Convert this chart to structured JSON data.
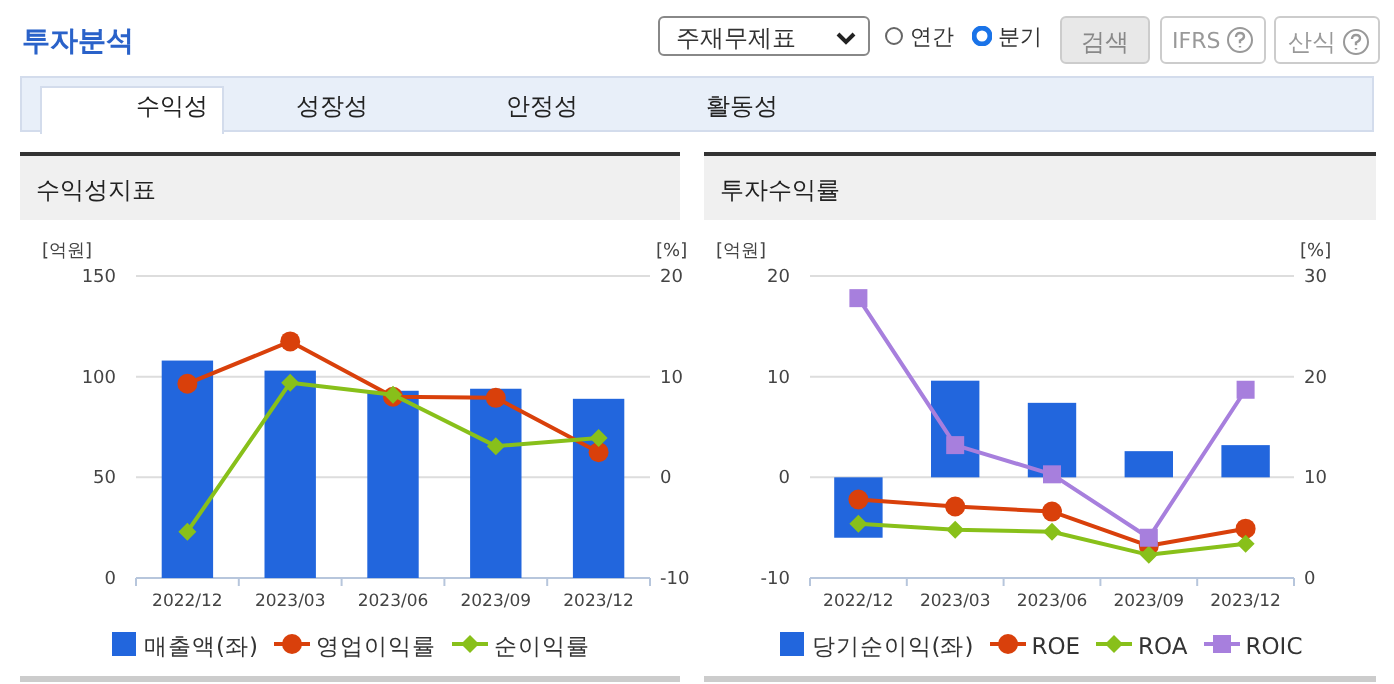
{
  "chart_data": [
    {
      "type": "bar",
      "title": "수익성지표",
      "ylabel": "[억원]",
      "y2label": "[%]",
      "annotations": [
        "투자분석",
        "주재무제표",
        "연간",
        "분기",
        "검색",
        "IFRS",
        "산식",
        "수익성",
        "성장성",
        "안정성",
        "활동성"
      ],
      "categories": [
        "2022/12",
        "2023/03",
        "2023/06",
        "2023/09",
        "2023/12"
      ],
      "series": [
        {
          "name": "매출액(좌)",
          "color": "#2266dd",
          "values": [
            108,
            103,
            93,
            94,
            89
          ]
        },
        {
          "name": "영업이익률",
          "type": "line",
          "axis": "y2",
          "marker": "circle",
          "color": "#d9400b",
          "values": [
            9.3,
            13.5,
            8.0,
            7.9,
            2.5
          ]
        },
        {
          "name": "순이익률",
          "type": "line",
          "axis": "y2",
          "marker": "diamond",
          "color": "#88c01a",
          "values": [
            -5.4,
            9.4,
            8.2,
            3.1,
            3.9
          ]
        }
      ],
      "ylim": [
        0,
        150
      ],
      "yticks": [
        0,
        50,
        100,
        150
      ],
      "y2lim": [
        -10,
        20
      ],
      "y2ticks": [
        -10,
        0,
        10,
        20
      ],
      "grid": "y",
      "legend": "bottom"
    },
    {
      "type": "bar",
      "title": "투자수익률",
      "ylabel": "[억원]",
      "y2label": "[%]",
      "categories": [
        "2022/12",
        "2023/03",
        "2023/06",
        "2023/09",
        "2023/12"
      ],
      "series": [
        {
          "name": "당기순이익(좌)",
          "color": "#2266dd",
          "values": [
            -6.0,
            9.6,
            7.4,
            2.6,
            3.2
          ]
        },
        {
          "name": "ROE",
          "type": "line",
          "axis": "y2",
          "marker": "circle",
          "color": "#d9400b",
          "values": [
            7.8,
            7.1,
            6.6,
            3.2,
            4.9
          ]
        },
        {
          "name": "ROA",
          "type": "line",
          "axis": "y2",
          "marker": "diamond",
          "color": "#88c01a",
          "values": [
            5.4,
            4.8,
            4.6,
            2.3,
            3.4
          ]
        },
        {
          "name": "ROIC",
          "type": "line",
          "axis": "y2",
          "marker": "square",
          "color": "#a77fdd",
          "values": [
            27.8,
            13.2,
            10.3,
            4.0,
            18.7
          ]
        }
      ],
      "ylim": [
        -10,
        20
      ],
      "yticks": [
        -10,
        0,
        10,
        20
      ],
      "y2lim": [
        0,
        30
      ],
      "y2ticks": [
        0,
        10,
        20,
        30
      ],
      "grid": "y",
      "legend": "bottom"
    }
  ]
}
